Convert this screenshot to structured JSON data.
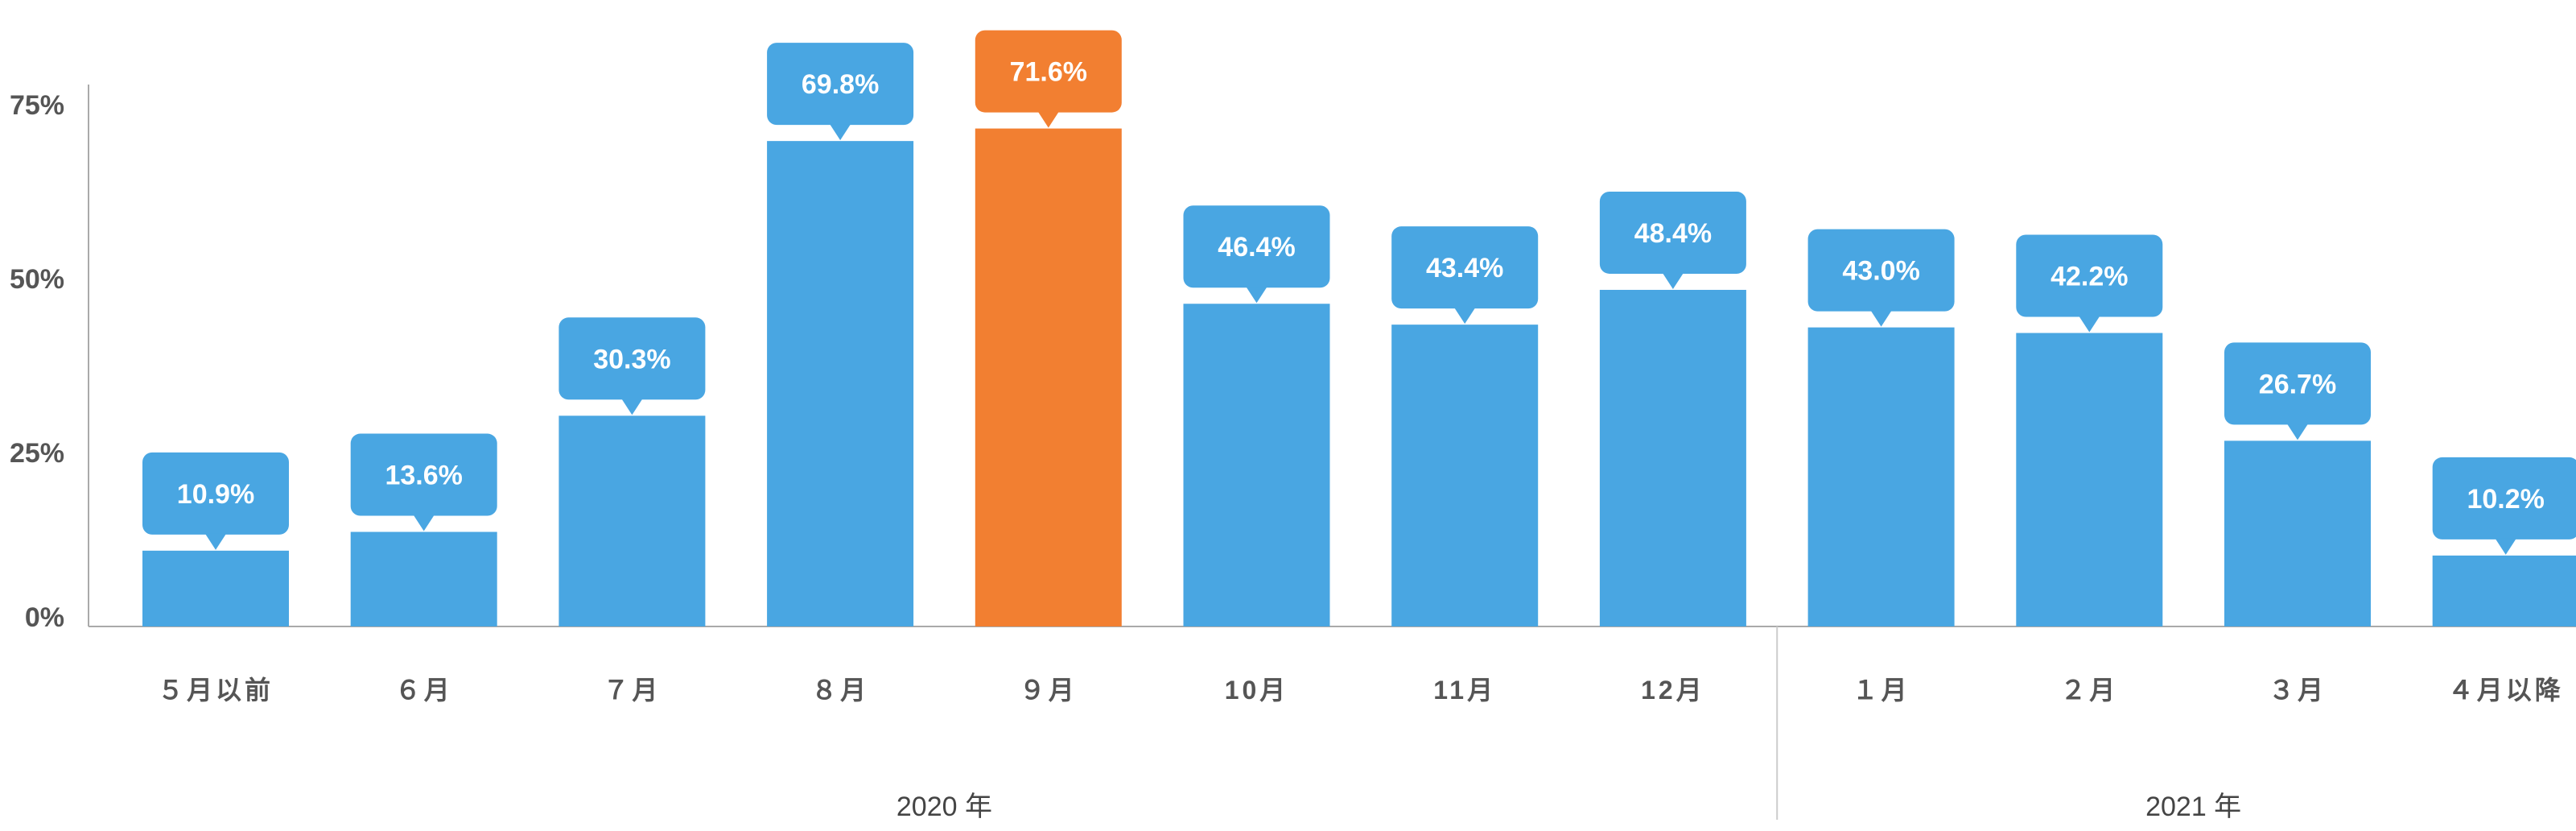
{
  "chart_data": {
    "type": "bar",
    "categories": [
      "５月以前",
      "６月",
      "７月",
      "８月",
      "９月",
      "10月",
      "11月",
      "12月",
      "１月",
      "２月",
      "３月",
      "４月以降"
    ],
    "values": [
      10.9,
      13.6,
      30.3,
      69.8,
      71.6,
      46.4,
      43.4,
      48.4,
      43.0,
      42.2,
      26.7,
      10.2
    ],
    "value_labels": [
      "10.9%",
      "13.6%",
      "30.3%",
      "69.8%",
      "71.6%",
      "46.4%",
      "43.4%",
      "48.4%",
      "43.0%",
      "42.2%",
      "26.7%",
      "10.2%"
    ],
    "highlight_index": 4,
    "yticks": [
      {
        "value": 0,
        "label": "0%"
      },
      {
        "value": 25,
        "label": "25%"
      },
      {
        "value": 50,
        "label": "50%"
      },
      {
        "value": 75,
        "label": "75%"
      }
    ],
    "ylim": [
      0,
      78.5
    ],
    "groups": [
      {
        "label": "2020 年",
        "start": 0,
        "end": 7
      },
      {
        "label": "2021 年",
        "start": 8,
        "end": 11
      }
    ],
    "colors": {
      "bar": "#49a6e2",
      "highlight": "#f27f31",
      "axis": "#aaaaaa",
      "tick_text": "#555555"
    },
    "grid": false,
    "legend": "none"
  }
}
